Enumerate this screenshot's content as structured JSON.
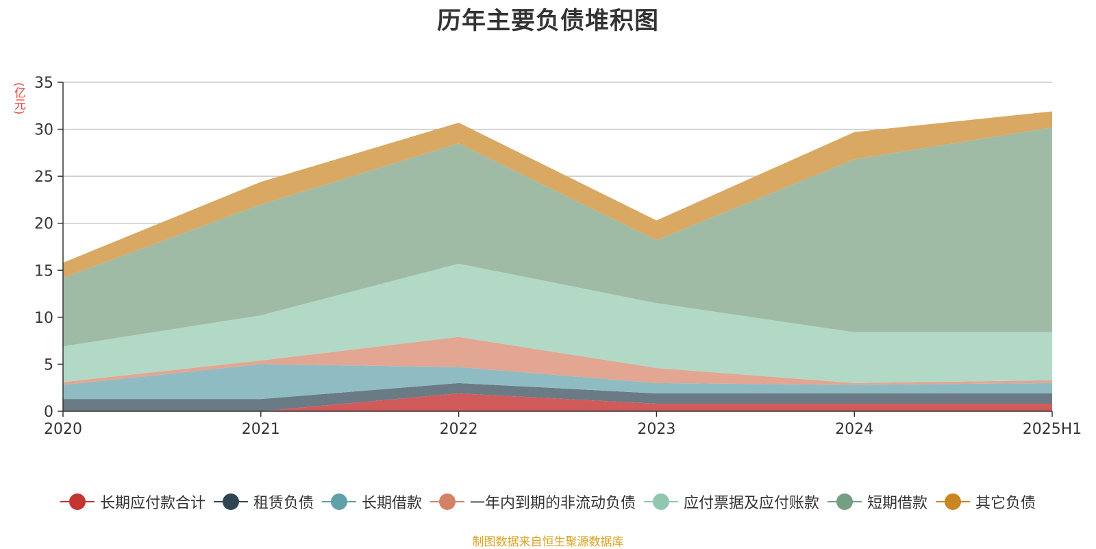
{
  "chart_data": {
    "type": "area",
    "stacked": true,
    "title": "历年主要负债堆积图",
    "unit_label": "(亿元)",
    "categories": [
      "2020",
      "2021",
      "2022",
      "2023",
      "2024",
      "2025H1"
    ],
    "ylim": [
      0,
      35
    ],
    "yticks": [
      0,
      5,
      10,
      15,
      20,
      25,
      30,
      35
    ],
    "grid": true,
    "legend_position": "bottom",
    "series": [
      {
        "name": "长期应付款合计",
        "color": "#d15b5b",
        "legend_color": "#c23531",
        "values": [
          0,
          0,
          1.9,
          0.8,
          0.8,
          0.8
        ]
      },
      {
        "name": "租赁负债",
        "color": "#6b7b86",
        "legend_color": "#2f4554",
        "values": [
          1.3,
          1.3,
          1.1,
          1.1,
          1.1,
          1.1
        ]
      },
      {
        "name": "长期借款",
        "color": "#8fbcc3",
        "legend_color": "#61a0a8",
        "values": [
          1.5,
          3.7,
          1.7,
          1.1,
          0.9,
          1.1
        ]
      },
      {
        "name": "一年内到期的非流动负债",
        "color": "#e2a693",
        "legend_color": "#d48265",
        "values": [
          0.3,
          0.4,
          3.2,
          1.6,
          0.2,
          0.3
        ]
      },
      {
        "name": "应付票据及应付账款",
        "color": "#b1d9c6",
        "legend_color": "#91c7ae",
        "values": [
          3.8,
          4.8,
          7.8,
          6.9,
          5.4,
          5.1
        ]
      },
      {
        "name": "短期借款",
        "color": "#9fbba6",
        "legend_color": "#749f83",
        "values": [
          7.3,
          11.8,
          12.8,
          6.7,
          18.4,
          21.8
        ]
      },
      {
        "name": "其它负债",
        "color": "#d9a862",
        "legend_color": "#ca8622",
        "values": [
          1.6,
          2.4,
          2.2,
          2.1,
          2.9,
          1.7
        ]
      }
    ]
  },
  "source_note": "制图数据来自恒生聚源数据库"
}
